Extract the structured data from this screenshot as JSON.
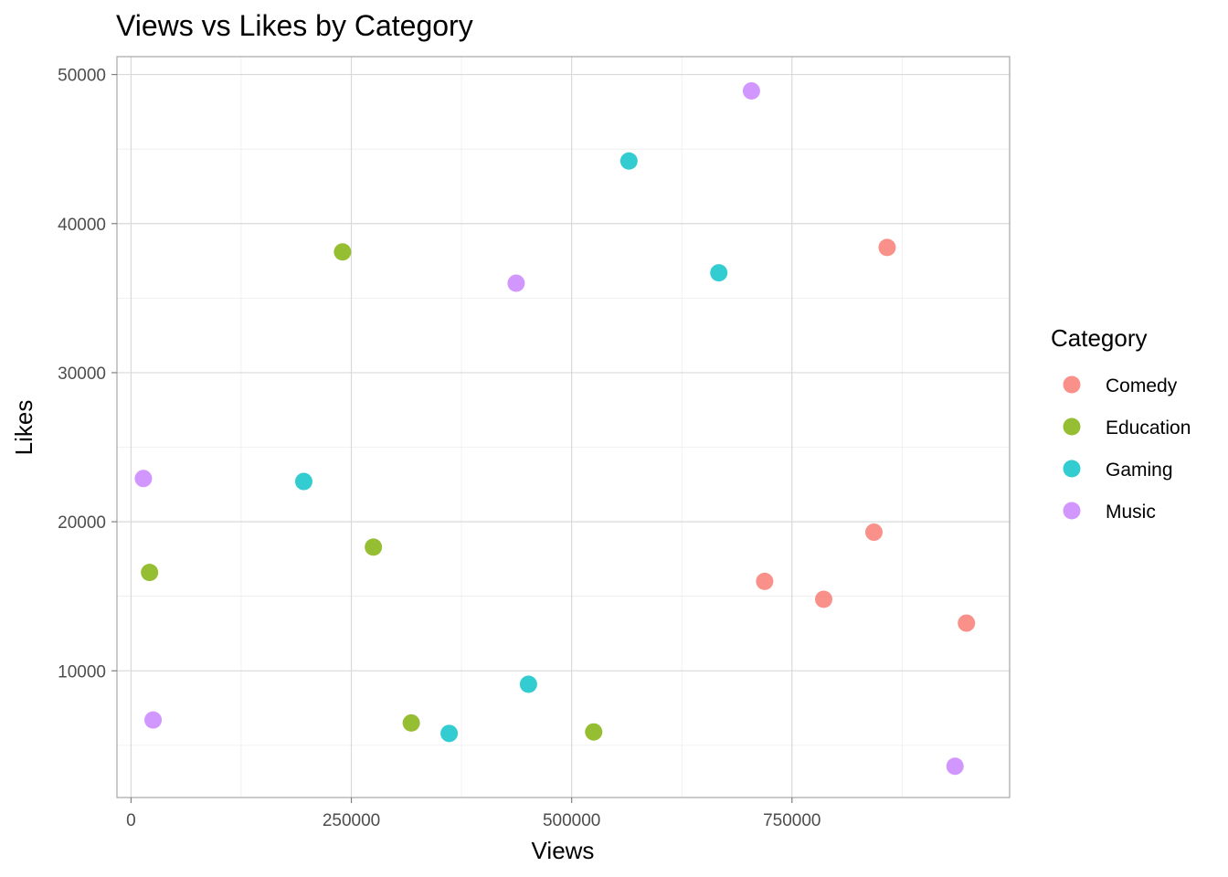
{
  "chart_data": {
    "type": "scatter",
    "title": "Views vs Likes by Category",
    "xlabel": "Views",
    "ylabel": "Likes",
    "xlim": [
      -16000,
      997000
    ],
    "ylim": [
      1500,
      51200
    ],
    "x_ticks": [
      0,
      250000,
      500000,
      750000
    ],
    "x_tick_labels": [
      "0",
      "250000",
      "500000",
      "750000"
    ],
    "x_minor_ticks": [
      125000,
      375000,
      625000,
      875000
    ],
    "y_ticks": [
      10000,
      20000,
      30000,
      40000,
      50000
    ],
    "y_tick_labels": [
      "10000",
      "20000",
      "30000",
      "40000",
      "50000"
    ],
    "y_minor_ticks": [
      5000,
      15000,
      25000,
      35000,
      45000
    ],
    "grid": true,
    "legend_title": "Category",
    "legend_position": "right",
    "series": [
      {
        "name": "Comedy",
        "color": "#F8766D",
        "points": [
          {
            "x": 858000,
            "y": 38400
          },
          {
            "x": 843000,
            "y": 19300
          },
          {
            "x": 719000,
            "y": 16000
          },
          {
            "x": 786000,
            "y": 14800
          },
          {
            "x": 948000,
            "y": 13200
          }
        ]
      },
      {
        "name": "Education",
        "color": "#7CAE00",
        "points": [
          {
            "x": 240000,
            "y": 38100
          },
          {
            "x": 21000,
            "y": 16600
          },
          {
            "x": 275000,
            "y": 18300
          },
          {
            "x": 318000,
            "y": 6500
          },
          {
            "x": 525000,
            "y": 5900
          }
        ]
      },
      {
        "name": "Gaming",
        "color": "#00BFC4",
        "points": [
          {
            "x": 565000,
            "y": 44200
          },
          {
            "x": 667000,
            "y": 36700
          },
          {
            "x": 196000,
            "y": 22700
          },
          {
            "x": 451000,
            "y": 9100
          },
          {
            "x": 361000,
            "y": 5800
          }
        ]
      },
      {
        "name": "Music",
        "color": "#C77CFF",
        "points": [
          {
            "x": 704000,
            "y": 48900
          },
          {
            "x": 437000,
            "y": 36000
          },
          {
            "x": 14000,
            "y": 22900
          },
          {
            "x": 25000,
            "y": 6700
          },
          {
            "x": 935000,
            "y": 3600
          }
        ]
      }
    ]
  }
}
